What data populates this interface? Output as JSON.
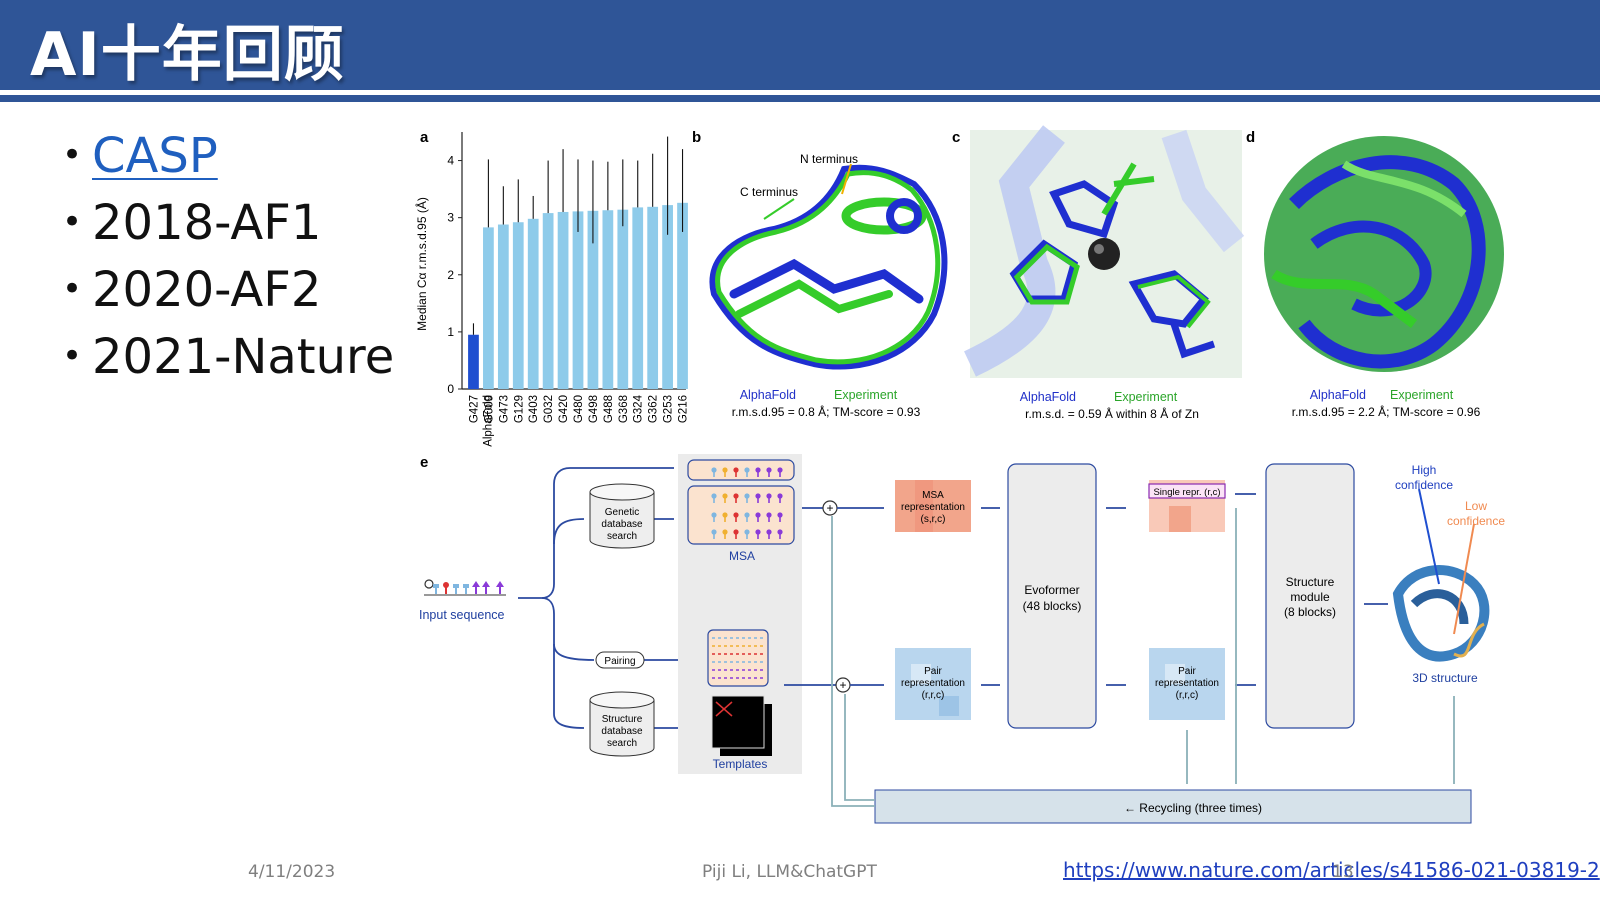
{
  "slide": {
    "title": "AI十年回顾",
    "bullets": [
      {
        "text": "CASP",
        "is_link": true
      },
      {
        "text": "2018-AF1",
        "is_link": false
      },
      {
        "text": "2020-AF2",
        "is_link": false
      },
      {
        "text": "2021-Nature",
        "is_link": false
      }
    ]
  },
  "figure": {
    "panel_labels": {
      "a": "a",
      "b": "b",
      "c": "c",
      "d": "d",
      "e": "e"
    },
    "panel_b": {
      "n_terminus": "N terminus",
      "c_terminus": "C terminus",
      "legend_alphafold": "AlphaFold",
      "legend_experiment": "Experiment",
      "metric": "r.m.s.d.95 = 0.8 Å; TM-score = 0.93"
    },
    "panel_c": {
      "legend_alphafold": "AlphaFold",
      "legend_experiment": "Experiment",
      "metric": "r.m.s.d. = 0.59 Å within 8 Å of Zn"
    },
    "panel_d": {
      "legend_alphafold": "AlphaFold",
      "legend_experiment": "Experiment",
      "metric": "r.m.s.d.95 = 2.2 Å; TM-score = 0.96"
    },
    "panel_e": {
      "input_sequence": "Input sequence",
      "genetic_db": [
        "Genetic",
        "database",
        "search"
      ],
      "structure_db": [
        "Structure",
        "database",
        "search"
      ],
      "pairing": "Pairing",
      "msa": "MSA",
      "templates": "Templates",
      "msa_repr": [
        "MSA",
        "representation",
        "(s,r,c)"
      ],
      "pair_repr": [
        "Pair",
        "representation",
        "(r,r,c)"
      ],
      "evoformer": [
        "Evoformer",
        "(48 blocks)"
      ],
      "single_repr": "Single repr. (r,c)",
      "structure_module": [
        "Structure",
        "module",
        "(8 blocks)"
      ],
      "high_confidence": [
        "High",
        "confidence"
      ],
      "low_confidence": [
        "Low",
        "confidence"
      ],
      "structure_3d": "3D structure",
      "recycling": "← Recycling (three times)"
    }
  },
  "chart_data": {
    "type": "bar",
    "ylabel": "Median Cα r.m.s.d.95 (Å)",
    "ylim": [
      0,
      4.5
    ],
    "yticks": [
      0,
      1,
      2,
      3,
      4
    ],
    "categories": [
      "G427",
      "G009",
      "G473",
      "G129",
      "G403",
      "G032",
      "G420",
      "G480",
      "G498",
      "G488",
      "G368",
      "G324",
      "G362",
      "G253",
      "G216"
    ],
    "series_label": "AlphaFold",
    "values": [
      0.95,
      2.83,
      2.88,
      2.92,
      2.98,
      3.08,
      3.1,
      3.11,
      3.12,
      3.13,
      3.14,
      3.18,
      3.19,
      3.22,
      3.26
    ],
    "error_high": [
      1.15,
      4.02,
      3.55,
      3.67,
      3.38,
      4.0,
      4.2,
      4.02,
      4.0,
      3.98,
      4.02,
      4.0,
      4.12,
      4.42,
      4.2
    ],
    "error_low": [
      0.95,
      2.83,
      2.88,
      2.92,
      2.98,
      3.08,
      3.1,
      2.75,
      2.55,
      3.13,
      2.85,
      3.18,
      3.19,
      2.7,
      2.75
    ],
    "colors": {
      "alphafold": "#1f4fd0",
      "others": "#8ecbea"
    }
  },
  "footer": {
    "date": "4/11/2023",
    "author": "Piji Li, LLM&ChatGPT",
    "link": "https://www.nature.com/articles/s41586-021-03819-2",
    "page": "13"
  }
}
